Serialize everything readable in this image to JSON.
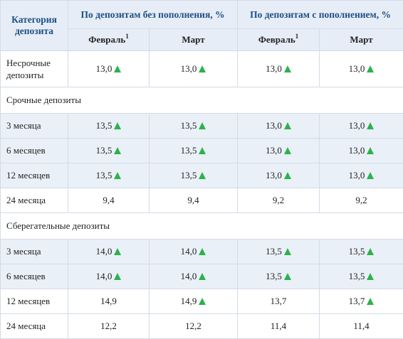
{
  "header": {
    "category": "Категория депозита",
    "group_no_topup": "По депозитам без пополнения, %",
    "group_topup": "По депозитам с пополнением, %",
    "month_feb": "Февраль",
    "footnote_mark": "1",
    "month_mar": "Март"
  },
  "rows": [
    {
      "type": "data",
      "label": "Несрочные депозиты",
      "tall": true,
      "shade": false,
      "cells": [
        {
          "value": "13,0",
          "up": true
        },
        {
          "value": "13,0",
          "up": true
        },
        {
          "value": "13,0",
          "up": true
        },
        {
          "value": "13,0",
          "up": true
        }
      ]
    },
    {
      "type": "section",
      "label": "Срочные депозиты"
    },
    {
      "type": "data",
      "label": "3 месяца",
      "shade": true,
      "cells": [
        {
          "value": "13,5",
          "up": true
        },
        {
          "value": "13,5",
          "up": true
        },
        {
          "value": "13,0",
          "up": true
        },
        {
          "value": "13,0",
          "up": true
        }
      ]
    },
    {
      "type": "data",
      "label": "6 месяцев",
      "shade": true,
      "cells": [
        {
          "value": "13,5",
          "up": true
        },
        {
          "value": "13,5",
          "up": true
        },
        {
          "value": "13,0",
          "up": true
        },
        {
          "value": "13,0",
          "up": true
        }
      ]
    },
    {
      "type": "data",
      "label": "12 месяцев",
      "shade": true,
      "cells": [
        {
          "value": "13,5",
          "up": true
        },
        {
          "value": "13,5",
          "up": true
        },
        {
          "value": "13,0",
          "up": true
        },
        {
          "value": "13,0",
          "up": true
        }
      ]
    },
    {
      "type": "data",
      "label": "24 месяца",
      "shade": false,
      "cells": [
        {
          "value": "9,4",
          "up": false
        },
        {
          "value": "9,4",
          "up": false
        },
        {
          "value": "9,2",
          "up": false
        },
        {
          "value": "9,2",
          "up": false
        }
      ]
    },
    {
      "type": "section",
      "label": "Сберегательные  депозиты"
    },
    {
      "type": "data",
      "label": "3 месяца",
      "shade": true,
      "cells": [
        {
          "value": "14,0",
          "up": true
        },
        {
          "value": "14,0",
          "up": true
        },
        {
          "value": "13,5",
          "up": true
        },
        {
          "value": "13,5",
          "up": true
        }
      ]
    },
    {
      "type": "data",
      "label": "6 месяцев",
      "shade": true,
      "cells": [
        {
          "value": "14,0",
          "up": true
        },
        {
          "value": "14,0",
          "up": true
        },
        {
          "value": "13,5",
          "up": true
        },
        {
          "value": "13,5",
          "up": true
        }
      ]
    },
    {
      "type": "data",
      "label": "12 месяцев",
      "shade": false,
      "cells": [
        {
          "value": "14,9",
          "up": false
        },
        {
          "value": "14,9",
          "up": true
        },
        {
          "value": "13,7",
          "up": false
        },
        {
          "value": "13,7",
          "up": true
        }
      ]
    },
    {
      "type": "data",
      "label": "24 месяца",
      "shade": false,
      "cells": [
        {
          "value": "12,2",
          "up": false
        },
        {
          "value": "12,2",
          "up": false
        },
        {
          "value": "11,4",
          "up": false
        },
        {
          "value": "11,4",
          "up": false
        }
      ]
    }
  ],
  "icons": {
    "increase": "up-triangle-icon"
  },
  "colors": {
    "header_text": "#1f4f85",
    "header_bg": "#e6edf6",
    "row_shade": "#eaf0f7",
    "increase_icon": "#2bb24c"
  }
}
